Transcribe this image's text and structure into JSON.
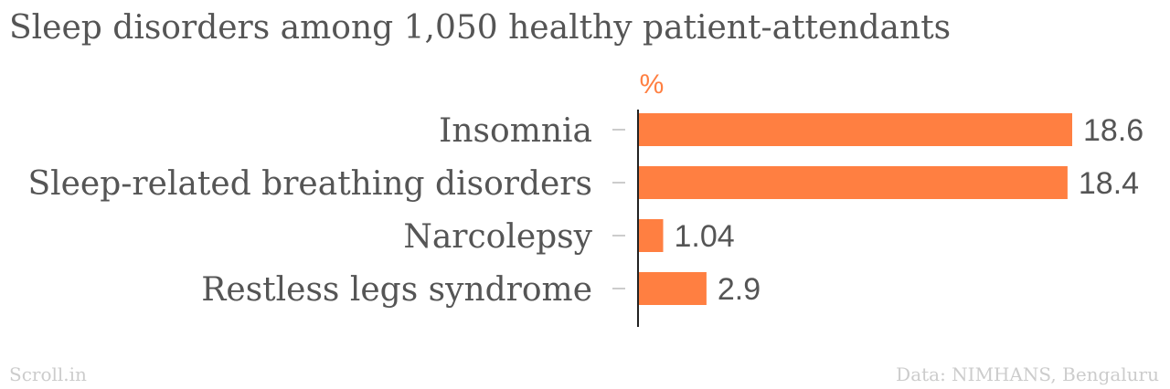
{
  "colors": {
    "bar": "#ff7f41",
    "text": "#555555",
    "footer": "#cccccc",
    "axis": "#222222",
    "tick": "#cccccc"
  },
  "chart_data": {
    "type": "bar",
    "orientation": "horizontal",
    "title": "Sleep disorders among 1,050 healthy patient-attendants",
    "unit": "%",
    "categories": [
      "Insomnia",
      "Sleep-related breathing disorders",
      "Narcolepsy",
      "Restless legs syndrome"
    ],
    "values": [
      18.6,
      18.4,
      1.04,
      2.9
    ],
    "value_labels": [
      "18.6",
      "18.4",
      "1.04",
      "2.9"
    ],
    "xlim": [
      0,
      18.6
    ],
    "grid": false
  },
  "footer": {
    "source_brand": "Scroll.in",
    "data_source": "Data: NIMHANS, Bengaluru"
  }
}
